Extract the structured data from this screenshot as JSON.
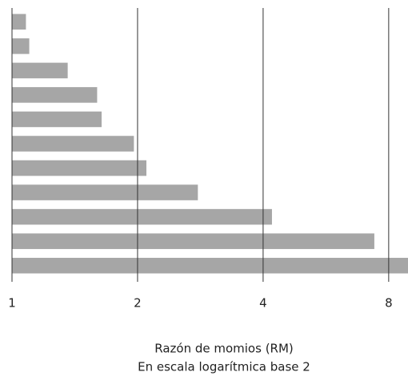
{
  "chart_data": {
    "type": "barh",
    "categories": [
      null,
      null,
      null,
      null,
      null,
      null,
      null,
      null,
      null,
      null,
      null
    ],
    "values": [
      1.08,
      1.1,
      1.36,
      1.6,
      1.64,
      1.96,
      2.1,
      2.79,
      4.2,
      7.39,
      8.9
    ],
    "color": "#a6a6a6",
    "xlim": [
      1,
      8.9
    ],
    "xticks": [
      1,
      2,
      4,
      8
    ],
    "xscale": "log",
    "log_base": 2,
    "grid": true,
    "xlabel": "Razón de momios (RM)",
    "xlabel2": "En escala logarítmica base 2"
  }
}
